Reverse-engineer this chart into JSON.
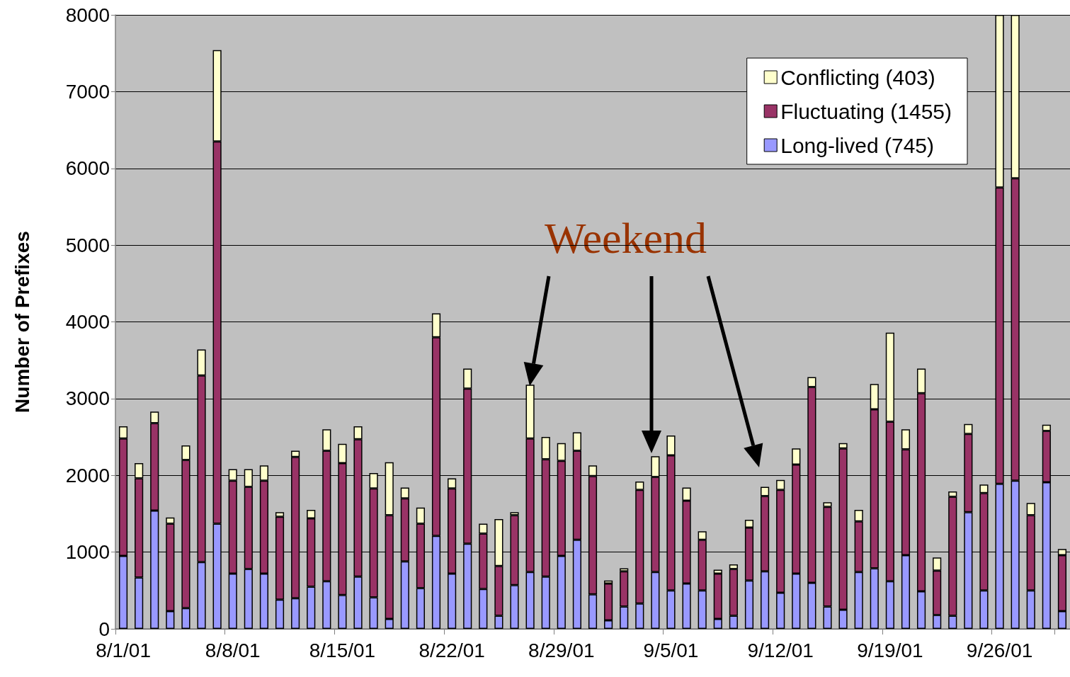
{
  "chart_data": {
    "type": "bar",
    "stacked": true,
    "ylabel": "Number of Prefixes",
    "categories": [
      "8/1/01",
      null,
      null,
      null,
      null,
      null,
      null,
      "8/8/01",
      null,
      null,
      null,
      null,
      null,
      null,
      "8/15/01",
      null,
      null,
      null,
      null,
      null,
      null,
      "8/22/01",
      null,
      null,
      null,
      null,
      null,
      null,
      "8/29/01",
      null,
      null,
      null,
      null,
      null,
      null,
      "9/5/01",
      null,
      null,
      null,
      null,
      null,
      null,
      "9/12/01",
      null,
      null,
      null,
      null,
      null,
      null,
      "9/19/01",
      null,
      null,
      null,
      null,
      null,
      null,
      "9/26/01",
      null,
      null,
      null,
      null
    ],
    "series": [
      {
        "name": "Long-lived (745)",
        "color": "#9999ff",
        "values": [
          950,
          670,
          1540,
          230,
          270,
          870,
          1370,
          720,
          780,
          720,
          380,
          400,
          550,
          620,
          440,
          680,
          410,
          130,
          880,
          530,
          1210,
          720,
          1110,
          520,
          170,
          570,
          740,
          680,
          950,
          1160,
          450,
          110,
          290,
          330,
          740,
          500,
          590,
          500,
          130,
          170,
          630,
          750,
          470,
          720,
          600,
          290,
          250,
          740,
          790,
          620,
          960,
          490,
          180,
          170,
          1520,
          500,
          1890,
          1930,
          500,
          1910,
          230
        ]
      },
      {
        "name": "Fluctuating (1455)",
        "color": "#993366",
        "values": [
          1530,
          1290,
          1140,
          1140,
          1930,
          2430,
          4980,
          1210,
          1070,
          1210,
          1080,
          1840,
          890,
          1700,
          1720,
          1790,
          1420,
          1350,
          820,
          840,
          2590,
          1110,
          2020,
          720,
          650,
          910,
          1740,
          1530,
          1240,
          1160,
          1540,
          480,
          460,
          1480,
          1240,
          1760,
          1080,
          660,
          590,
          610,
          690,
          980,
          1340,
          1420,
          2550,
          1300,
          2100,
          660,
          2070,
          2080,
          1380,
          2580,
          580,
          1550,
          1020,
          1270,
          3860,
          3940,
          980,
          670,
          730
        ]
      },
      {
        "name": "Conflicting (403)",
        "color": "#ffffcc",
        "values": [
          160,
          200,
          150,
          80,
          190,
          340,
          1190,
          150,
          230,
          200,
          60,
          80,
          110,
          280,
          250,
          170,
          200,
          690,
          140,
          210,
          310,
          130,
          260,
          130,
          610,
          40,
          700,
          290,
          230,
          240,
          140,
          40,
          40,
          110,
          270,
          260,
          170,
          110,
          50,
          60,
          100,
          120,
          130,
          210,
          130,
          60,
          70,
          150,
          330,
          1160,
          260,
          320,
          170,
          70,
          130,
          110,
          2250,
          2130,
          160,
          80,
          80
        ]
      }
    ],
    "ylim": [
      0,
      8000
    ],
    "yticks": [
      0,
      1000,
      2000,
      3000,
      4000,
      5000,
      6000,
      7000,
      8000
    ],
    "grid": "y",
    "legend": "top right",
    "annotations": [
      "Weekend"
    ]
  }
}
